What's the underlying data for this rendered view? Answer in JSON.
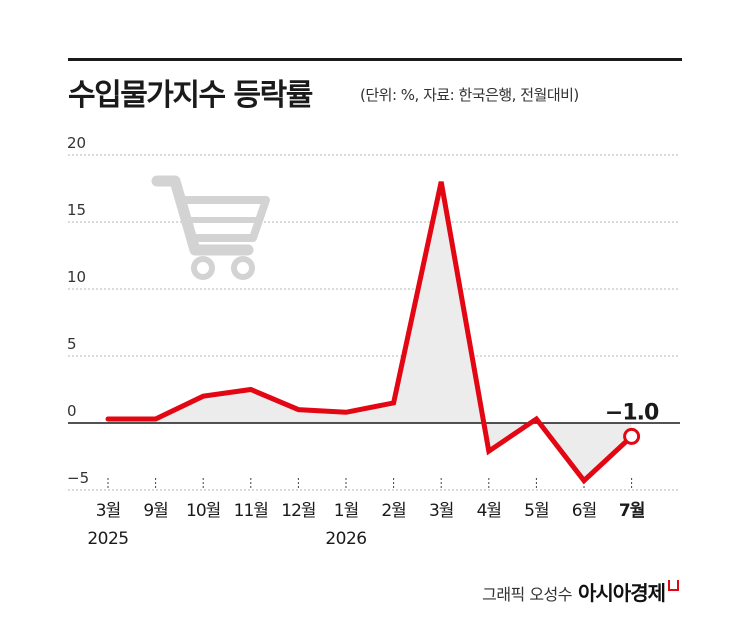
{
  "header": {
    "title": "수입물가지수 등락률",
    "subtitle": "(단위: %, 자료: 한국은행, 전월대비)"
  },
  "credit": {
    "artist": "그래픽 오성수",
    "brand": "아시아경제"
  },
  "icons": {
    "illustration": "shopping-cart-icon"
  },
  "colors": {
    "line": "#e30613",
    "area": "#ececec",
    "grid": "#b5b5b5",
    "cart": "#d3d3d3"
  },
  "chart_data": {
    "type": "line",
    "title": "수입물가지수 등락률",
    "subtitle": "(단위: %, 자료: 한국은행, 전월대비)",
    "xlabel": "",
    "ylabel": "",
    "categories": [
      "3월",
      "9월",
      "10월",
      "11월",
      "12월",
      "1월",
      "2월",
      "3월",
      "4월",
      "5월",
      "6월",
      "7월"
    ],
    "year_labels": [
      "2025",
      "",
      "",
      "",
      "",
      "2026",
      "",
      "",
      "",
      "",
      "",
      ""
    ],
    "series": [
      {
        "values": [
          0.3,
          0.3,
          2.0,
          2.5,
          1.0,
          0.8,
          1.5,
          18.0,
          -2.1,
          0.3,
          -4.3,
          -1.0
        ]
      }
    ],
    "yticks": [
      20,
      15,
      10,
      5,
      0,
      -5
    ],
    "ylim": [
      -5,
      20
    ],
    "grid": true,
    "highlight": {
      "index": 11,
      "label": "−1.0"
    },
    "area_fill": true
  }
}
